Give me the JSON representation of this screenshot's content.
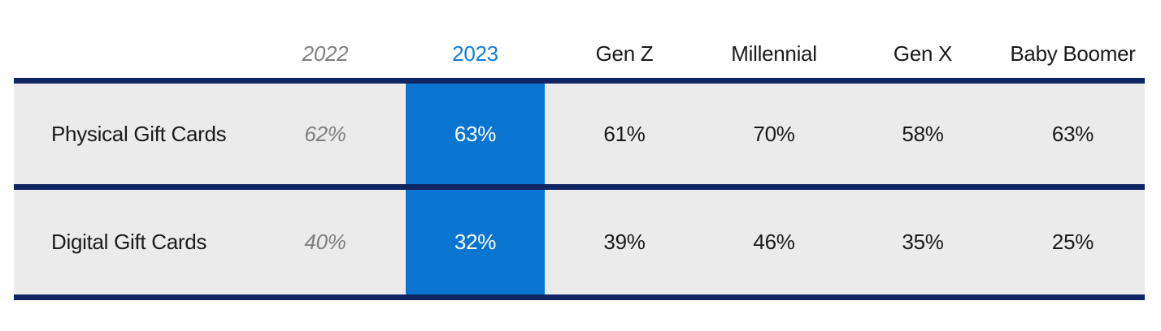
{
  "chart_data": {
    "type": "table",
    "columns": [
      "",
      "2022",
      "2023",
      "Gen Z",
      "Millennial",
      "Gen X",
      "Baby Boomer"
    ],
    "rows": [
      [
        "Physical Gift Cards",
        "62%",
        "63%",
        "61%",
        "70%",
        "58%",
        "63%"
      ],
      [
        "Digital Gift Cards",
        "40%",
        "32%",
        "39%",
        "46%",
        "35%",
        "25%"
      ]
    ],
    "highlight_column": "2023",
    "muted_column": "2022",
    "legend_position": "none",
    "grid": "horizontal-rules-only"
  },
  "colors": {
    "highlight_blue_fill": "#0A74D1",
    "highlight_header_text": "#0F7EE0",
    "navy_rule": "#102663",
    "row_gray_background": "#EBEBEB",
    "muted_gray_text": "#7F7F7F",
    "body_text": "#1A1A1A",
    "highlight_cell_text": "#FFFFFF",
    "page_background": "#FFFFFF"
  }
}
